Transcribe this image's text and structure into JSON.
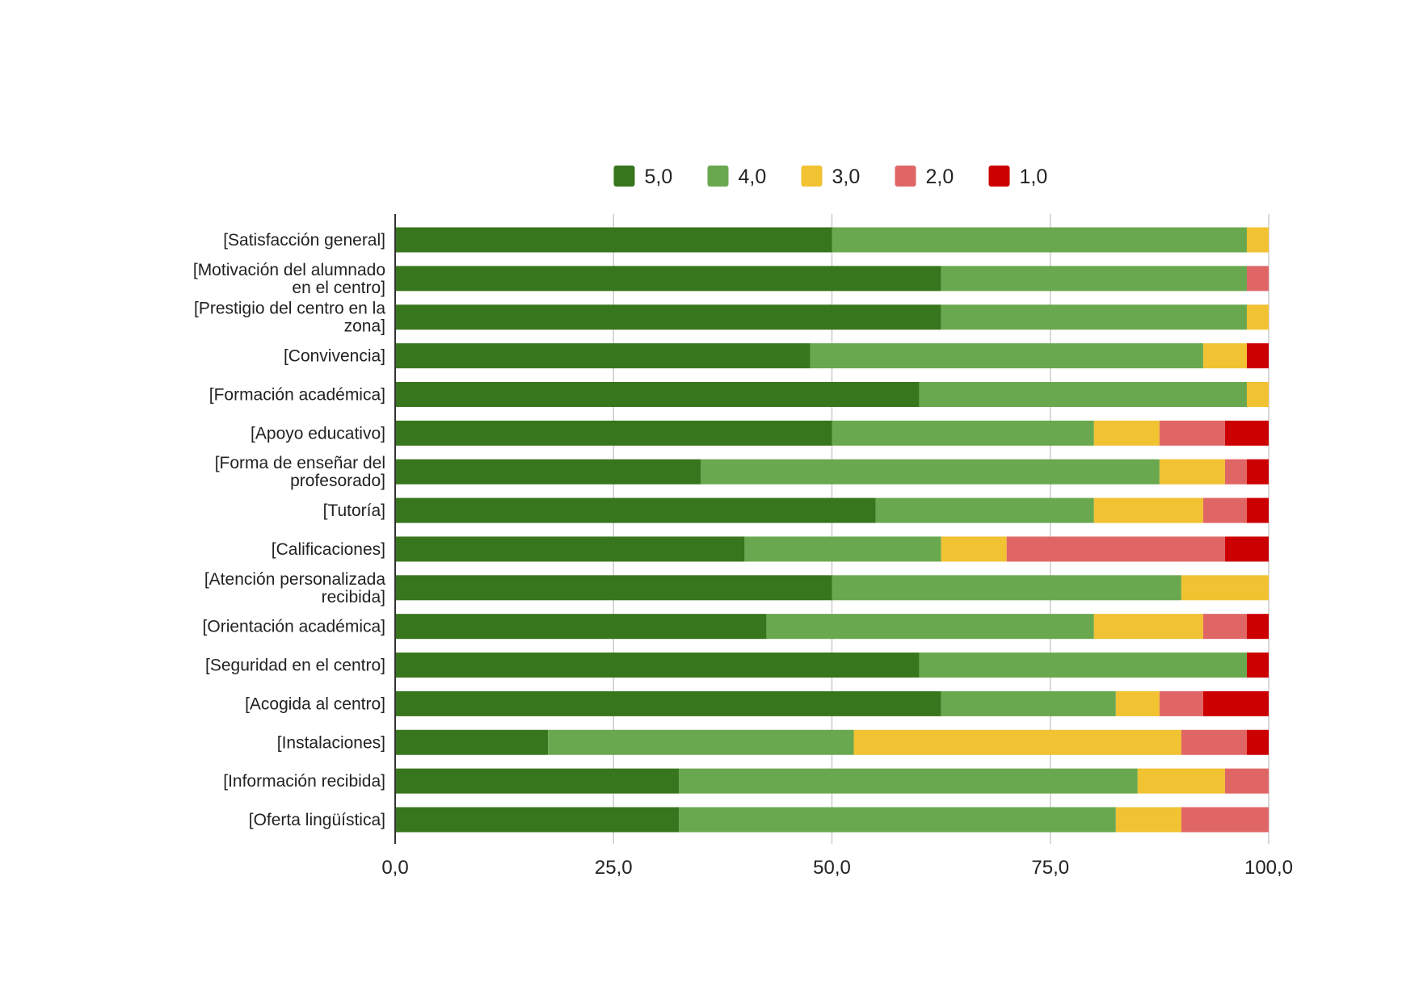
{
  "chart_data": {
    "type": "bar",
    "orientation": "horizontal",
    "stacked": true,
    "title": "",
    "xlabel": "",
    "ylabel": "",
    "xlim": [
      0,
      100
    ],
    "x_ticks": [
      "0,0",
      "25,0",
      "50,0",
      "75,0",
      "100,0"
    ],
    "x_tick_values": [
      0,
      25,
      50,
      75,
      100
    ],
    "grid": "vertical",
    "legend_position": "top-center",
    "categories": [
      [
        "[Satisfacción general]"
      ],
      [
        "[Motivación del alumnado",
        "en el centro]"
      ],
      [
        "[Prestigio del centro en la",
        "zona]"
      ],
      [
        "[Convivencia]"
      ],
      [
        "[Formación académica]"
      ],
      [
        "[Apoyo educativo]"
      ],
      [
        "[Forma de enseñar del",
        "profesorado]"
      ],
      [
        "[Tutoría]"
      ],
      [
        "[Calificaciones]"
      ],
      [
        "[Atención personalizada",
        "recibida]"
      ],
      [
        "[Orientación académica]"
      ],
      [
        "[Seguridad en el centro]"
      ],
      [
        "[Acogida al centro]"
      ],
      [
        "[Instalaciones]"
      ],
      [
        "[Información recibida]"
      ],
      [
        "[Oferta lingüística]"
      ]
    ],
    "series": [
      {
        "name": "5,0",
        "color": "#38761d",
        "values": [
          50,
          62.5,
          62.5,
          47.5,
          60,
          50,
          35,
          55,
          40,
          50,
          42.5,
          60,
          62.5,
          17.5,
          32.5,
          32.5
        ]
      },
      {
        "name": "4,0",
        "color": "#6aa84f",
        "values": [
          47.5,
          35,
          35,
          45,
          37.5,
          30,
          52.5,
          25,
          22.5,
          40,
          37.5,
          37.5,
          20,
          35,
          52.5,
          50
        ]
      },
      {
        "name": "3,0",
        "color": "#f1c232",
        "values": [
          2.5,
          0,
          2.5,
          5,
          2.5,
          7.5,
          7.5,
          12.5,
          7.5,
          10,
          12.5,
          0,
          5,
          37.5,
          10,
          7.5
        ]
      },
      {
        "name": "2,0",
        "color": "#e06666",
        "values": [
          0,
          2.5,
          0,
          0,
          0,
          7.5,
          2.5,
          5,
          25,
          0,
          5,
          0,
          5,
          7.5,
          5,
          10
        ]
      },
      {
        "name": "1,0",
        "color": "#cc0000",
        "values": [
          0,
          0,
          0,
          2.5,
          0,
          5,
          2.5,
          2.5,
          5,
          0,
          2.5,
          2.5,
          7.5,
          2.5,
          0,
          0
        ]
      }
    ]
  }
}
